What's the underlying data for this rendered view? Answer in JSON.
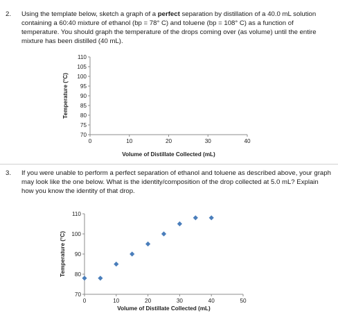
{
  "question2": {
    "number": "2.",
    "text_before": "Using the template below, sketch a graph of a ",
    "text_bold": "perfect",
    "text_after": " separation by distillation of a 40.0 mL solution containing a 60:40 mixture of ethanol (bp = 78° C) and toluene (bp = 108° C) as a function of temperature.  You should graph the temperature of the drops coming over (as volume) until the entire mixture has been distilled (40 mL)."
  },
  "question3": {
    "number": "3.",
    "text": "If you were unable to perform a perfect separation of ethanol and toluene as described above, your graph may look like the one below. What is the identity/composition of the drop collected at 5.0 mL? Explain how you know the identity of that drop."
  },
  "chart_data": [
    {
      "type": "scatter",
      "title": "",
      "xlabel": "Volume of Distillate Collected (mL)",
      "ylabel": "Temperature (°C)",
      "xlim": [
        0,
        40
      ],
      "ylim": [
        70,
        110
      ],
      "xticks": [
        "0",
        "10",
        "20",
        "30",
        "40"
      ],
      "yticks": [
        "70",
        "75",
        "80",
        "85",
        "90",
        "95",
        "100",
        "105",
        "110"
      ],
      "grid": false,
      "x": [],
      "y": []
    },
    {
      "type": "scatter",
      "title": "",
      "xlabel": "Volume of Distillate Collected (mL)",
      "ylabel": "Temperature (°C)",
      "xlim": [
        0,
        50
      ],
      "ylim": [
        70,
        110
      ],
      "xticks": [
        "0",
        "10",
        "20",
        "30",
        "40",
        "50"
      ],
      "yticks": [
        "70",
        "80",
        "90",
        "100",
        "110"
      ],
      "grid": false,
      "marker_color": "#4a7ebb",
      "x": [
        0,
        5,
        10,
        15,
        20,
        25,
        30,
        35,
        40
      ],
      "y": [
        78,
        78,
        85,
        90,
        95,
        100,
        105,
        108,
        108
      ]
    }
  ]
}
